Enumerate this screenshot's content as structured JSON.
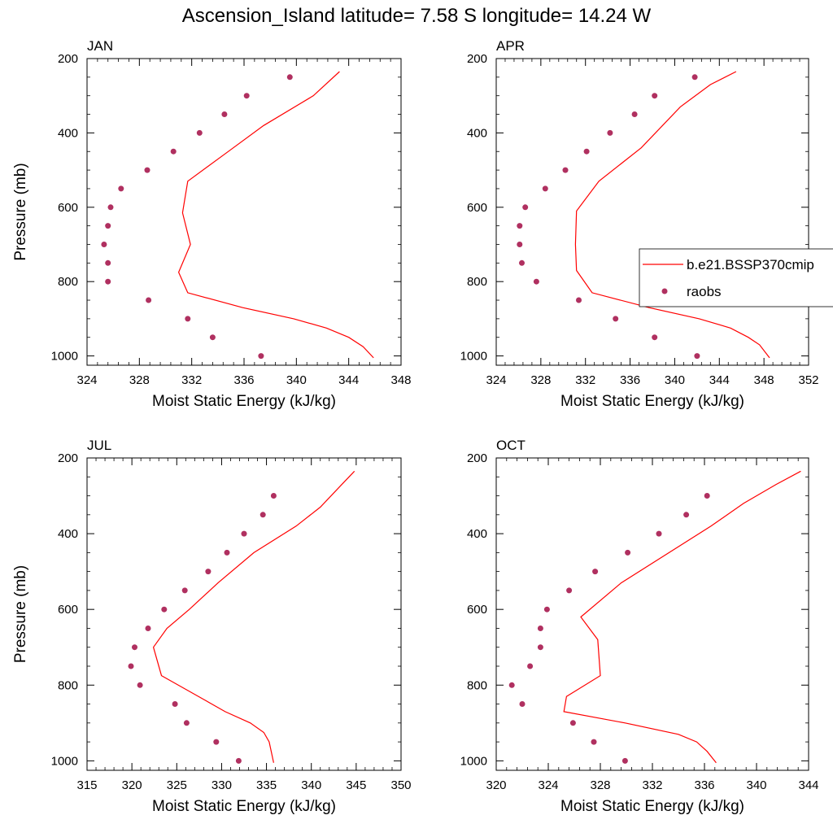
{
  "figure": {
    "title": "Ascension_Island  latitude= 7.58 S longitude= 14.24 W"
  },
  "legend": {
    "model_label": "b.e21.BSSP370cmip",
    "obs_label": "raobs"
  },
  "colors": {
    "model_line": "#ff0000",
    "obs_marker": "#b03060"
  },
  "chart_data": [
    {
      "type": "scatter",
      "panel_label": "JAN",
      "xlabel": "Moist Static Energy (kJ/kg)",
      "ylabel": "Pressure (mb)",
      "xlim": [
        324,
        348
      ],
      "xticks": [
        324,
        328,
        332,
        336,
        340,
        344,
        348
      ],
      "ylim": [
        200,
        1025
      ],
      "yticks": [
        200,
        400,
        600,
        800,
        1000
      ],
      "y_reversed": true,
      "series": [
        {
          "name": "b.e21.BSSP370cmip",
          "style": "line",
          "x": [
            343.3,
            341.3,
            337.5,
            334.8,
            331.7,
            331.3,
            331.9,
            331.0,
            331.7,
            335.9,
            339.8,
            342.3,
            344.0,
            345.1,
            345.9
          ],
          "y": [
            235,
            300,
            380,
            450,
            530,
            615,
            700,
            775,
            830,
            870,
            900,
            925,
            950,
            975,
            1005
          ]
        },
        {
          "name": "raobs",
          "style": "markers",
          "x": [
            339.5,
            336.2,
            334.5,
            332.6,
            330.6,
            328.6,
            326.6,
            325.8,
            325.6,
            325.3,
            325.6,
            325.6,
            328.7,
            331.7,
            333.6,
            337.3
          ],
          "y": [
            250,
            300,
            350,
            400,
            450,
            500,
            550,
            600,
            650,
            700,
            750,
            800,
            850,
            900,
            950,
            1000
          ]
        }
      ]
    },
    {
      "type": "scatter",
      "panel_label": "APR",
      "xlabel": "Moist Static Energy (kJ/kg)",
      "ylabel": "",
      "xlim": [
        324,
        352
      ],
      "xticks": [
        324,
        328,
        332,
        336,
        340,
        344,
        348,
        352
      ],
      "ylim": [
        200,
        1025
      ],
      "yticks": [
        200,
        400,
        600,
        800,
        1000
      ],
      "y_reversed": true,
      "series": [
        {
          "name": "b.e21.BSSP370cmip",
          "style": "line",
          "x": [
            345.5,
            343.2,
            340.5,
            337.0,
            333.2,
            331.2,
            331.1,
            331.2,
            332.6,
            337.7,
            342.2,
            345.0,
            346.6,
            347.6,
            348.5
          ],
          "y": [
            235,
            270,
            330,
            440,
            530,
            610,
            700,
            770,
            830,
            870,
            900,
            925,
            950,
            970,
            1005
          ]
        },
        {
          "name": "raobs",
          "style": "markers",
          "x": [
            341.8,
            338.2,
            336.4,
            334.2,
            332.1,
            330.2,
            328.4,
            326.6,
            326.1,
            326.1,
            326.3,
            327.6,
            331.4,
            334.7,
            338.2,
            342.0
          ],
          "y": [
            250,
            300,
            350,
            400,
            450,
            500,
            550,
            600,
            650,
            700,
            750,
            800,
            850,
            900,
            950,
            1000
          ]
        }
      ]
    },
    {
      "type": "scatter",
      "panel_label": "JUL",
      "xlabel": "Moist Static Energy (kJ/kg)",
      "ylabel": "Pressure (mb)",
      "xlim": [
        315,
        350
      ],
      "xticks": [
        315,
        320,
        325,
        330,
        335,
        340,
        345,
        350
      ],
      "ylim": [
        200,
        1025
      ],
      "yticks": [
        200,
        400,
        600,
        800,
        1000
      ],
      "y_reversed": true,
      "series": [
        {
          "name": "b.e21.BSSP370cmip",
          "style": "line",
          "x": [
            344.8,
            343.4,
            341.0,
            338.3,
            333.6,
            329.6,
            326.4,
            323.9,
            322.4,
            323.3,
            327.8,
            330.4,
            333.2,
            334.7,
            335.3,
            335.8
          ],
          "y": [
            235,
            270,
            330,
            380,
            450,
            530,
            600,
            650,
            700,
            775,
            835,
            870,
            900,
            925,
            950,
            1005
          ]
        },
        {
          "name": "raobs",
          "style": "markers",
          "x": [
            335.8,
            334.6,
            332.5,
            330.6,
            328.5,
            325.9,
            323.6,
            321.8,
            320.3,
            319.9,
            320.9,
            324.8,
            326.1,
            329.4,
            331.9
          ],
          "y": [
            300,
            350,
            400,
            450,
            500,
            550,
            600,
            650,
            700,
            750,
            800,
            850,
            900,
            950,
            1000
          ]
        }
      ]
    },
    {
      "type": "scatter",
      "panel_label": "OCT",
      "xlabel": "Moist Static Energy (kJ/kg)",
      "ylabel": "",
      "xlim": [
        320,
        344
      ],
      "xticks": [
        320,
        324,
        328,
        332,
        336,
        340,
        344
      ],
      "ylim": [
        200,
        1025
      ],
      "yticks": [
        200,
        400,
        600,
        800,
        1000
      ],
      "y_reversed": true,
      "series": [
        {
          "name": "b.e21.BSSP370cmip",
          "style": "line",
          "x": [
            343.4,
            341.5,
            339.0,
            336.5,
            329.6,
            326.5,
            327.8,
            328.0,
            325.4,
            325.2,
            329.9,
            334.0,
            335.4,
            336.2,
            336.9
          ],
          "y": [
            235,
            270,
            320,
            380,
            530,
            620,
            680,
            775,
            830,
            870,
            900,
            930,
            950,
            975,
            1005
          ]
        },
        {
          "name": "raobs",
          "style": "markers",
          "x": [
            336.2,
            334.6,
            332.5,
            330.1,
            327.6,
            325.6,
            323.9,
            323.4,
            323.4,
            322.6,
            321.2,
            322.0,
            325.9,
            327.5,
            329.9
          ],
          "y": [
            300,
            350,
            400,
            450,
            500,
            550,
            600,
            650,
            700,
            750,
            800,
            850,
            900,
            950,
            1000
          ]
        }
      ]
    }
  ]
}
